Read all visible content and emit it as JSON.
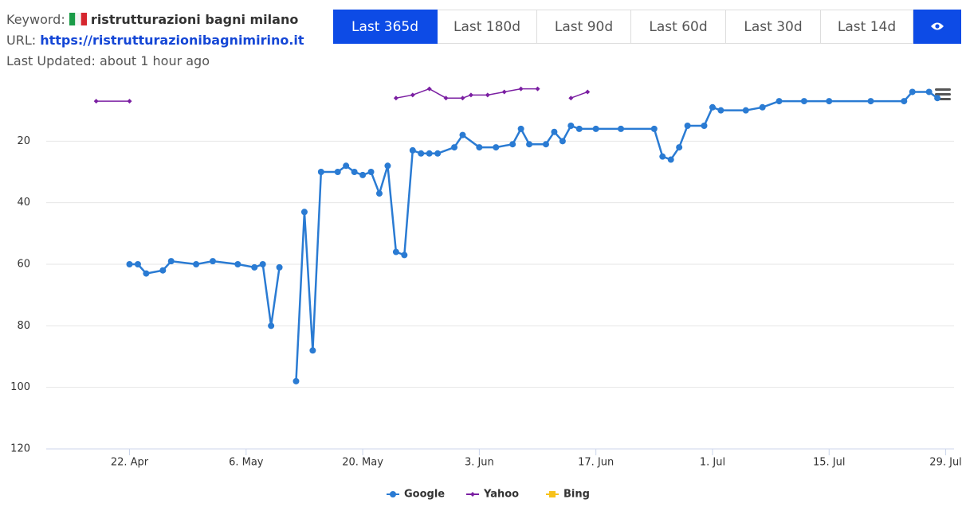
{
  "header": {
    "keyword_label": "Keyword:",
    "keyword": "ristrutturazioni bagni milano",
    "url_label": "URL:",
    "url": "https://ristrutturazionibagnimirino.it",
    "updated": "Last Updated: about 1 hour ago"
  },
  "ranges": {
    "options": [
      "Last 365d",
      "Last 180d",
      "Last 90d",
      "Last 60d",
      "Last 30d",
      "Last 14d"
    ],
    "active": 0
  },
  "chart_data": {
    "type": "line",
    "ylim": [
      0,
      120
    ],
    "y_reversed": true,
    "yticks": [
      20,
      40,
      60,
      80,
      100,
      120
    ],
    "grid": true,
    "xlim": [
      "04-12",
      "07-30"
    ],
    "xticks": [
      {
        "value": "04-22",
        "label": "22. Apr"
      },
      {
        "value": "05-06",
        "label": "6. May"
      },
      {
        "value": "05-20",
        "label": "20. May"
      },
      {
        "value": "06-03",
        "label": "3. Jun"
      },
      {
        "value": "06-17",
        "label": "17. Jun"
      },
      {
        "value": "07-01",
        "label": "1. Jul"
      },
      {
        "value": "07-15",
        "label": "15. Jul"
      },
      {
        "value": "07-29",
        "label": "29. Jul"
      }
    ],
    "series": [
      {
        "name": "Google",
        "color": "#2a7bd3",
        "marker": "circle",
        "x": [
          "04-22",
          "04-23",
          "04-24",
          "04-26",
          "04-27",
          "04-30",
          "05-02",
          "05-05",
          "05-07",
          "05-08",
          "05-09",
          "05-10",
          "05-11",
          "05-12",
          "05-13",
          "05-14",
          "05-15",
          "05-17",
          "05-18",
          "05-19",
          "05-20",
          "05-21",
          "05-22",
          "05-23",
          "05-24",
          "05-25",
          "05-26",
          "05-27",
          "05-28",
          "05-29",
          "05-31",
          "06-01",
          "06-03",
          "06-05",
          "06-07",
          "06-08",
          "06-09",
          "06-11",
          "06-12",
          "06-13",
          "06-14",
          "06-15",
          "06-17",
          "06-20",
          "06-24",
          "06-25",
          "06-26",
          "06-27",
          "06-28",
          "06-30",
          "07-01",
          "07-02",
          "07-05",
          "07-07",
          "07-09",
          "07-12",
          "07-15",
          "07-20",
          "07-24",
          "07-25",
          "07-27",
          "07-28"
        ],
        "values": [
          60,
          60,
          63,
          62,
          59,
          60,
          59,
          60,
          61,
          60,
          80,
          61,
          null,
          98,
          43,
          88,
          30,
          30,
          28,
          30,
          31,
          30,
          37,
          28,
          56,
          57,
          23,
          24,
          24,
          24,
          22,
          18,
          22,
          22,
          21,
          16,
          21,
          21,
          17,
          20,
          15,
          16,
          16,
          16,
          16,
          25,
          26,
          22,
          15,
          15,
          9,
          10,
          10,
          9,
          7,
          7,
          7,
          7,
          7,
          4,
          4,
          6
        ]
      },
      {
        "name": "Yahoo",
        "color": "#7b1fa2",
        "marker": "diamond",
        "x": [
          "04-18",
          "04-22",
          "05-01",
          "05-24",
          "05-26",
          "05-28",
          "05-30",
          "06-01",
          "06-02",
          "06-04",
          "06-06",
          "06-08",
          "06-10",
          "06-12",
          "06-14",
          "06-16"
        ],
        "values": [
          7,
          7,
          null,
          6,
          5,
          3,
          6,
          6,
          5,
          5,
          4,
          3,
          3,
          null,
          6,
          4
        ]
      },
      {
        "name": "Bing",
        "color": "#f7c21b",
        "marker": "square",
        "x": [],
        "values": []
      }
    ]
  }
}
